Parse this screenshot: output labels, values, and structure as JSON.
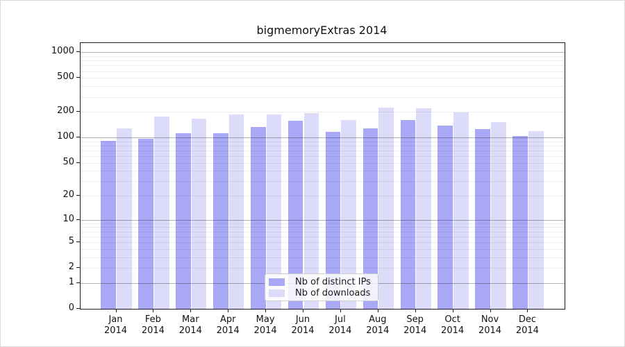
{
  "title": "bigmemoryExtras 2014",
  "chart_data": {
    "type": "bar",
    "title": "bigmemoryExtras 2014",
    "xlabel": "",
    "ylabel": "",
    "categories": [
      "Jan 2014",
      "Feb 2014",
      "Mar 2014",
      "Apr 2014",
      "May 2014",
      "Jun 2014",
      "Jul 2014",
      "Aug 2014",
      "Sep 2014",
      "Oct 2014",
      "Nov 2014",
      "Dec 2014"
    ],
    "series": [
      {
        "name": "Nb of distinct IPs",
        "color": "#a9a8f7",
        "values": [
          92,
          97,
          113,
          112,
          134,
          157,
          116,
          128,
          161,
          139,
          125,
          104
        ]
      },
      {
        "name": "Nb of downloads",
        "color": "#dcdbfa",
        "values": [
          129,
          175,
          168,
          188,
          188,
          195,
          161,
          225,
          219,
          198,
          152,
          119
        ]
      }
    ],
    "y_scale": "log10(1+x)",
    "y_ticks": [
      0,
      1,
      2,
      5,
      10,
      20,
      50,
      100,
      200,
      500,
      1000
    ],
    "grid_major": [
      1,
      10,
      100,
      1000
    ],
    "grid_minor": [
      2,
      3,
      4,
      5,
      6,
      7,
      8,
      9,
      20,
      30,
      40,
      50,
      60,
      70,
      80,
      90,
      200,
      300,
      400,
      500,
      600,
      700,
      800,
      900
    ],
    "grid": "on",
    "legend_position": "bottom-center",
    "axis_color": "#1a1a1a"
  }
}
